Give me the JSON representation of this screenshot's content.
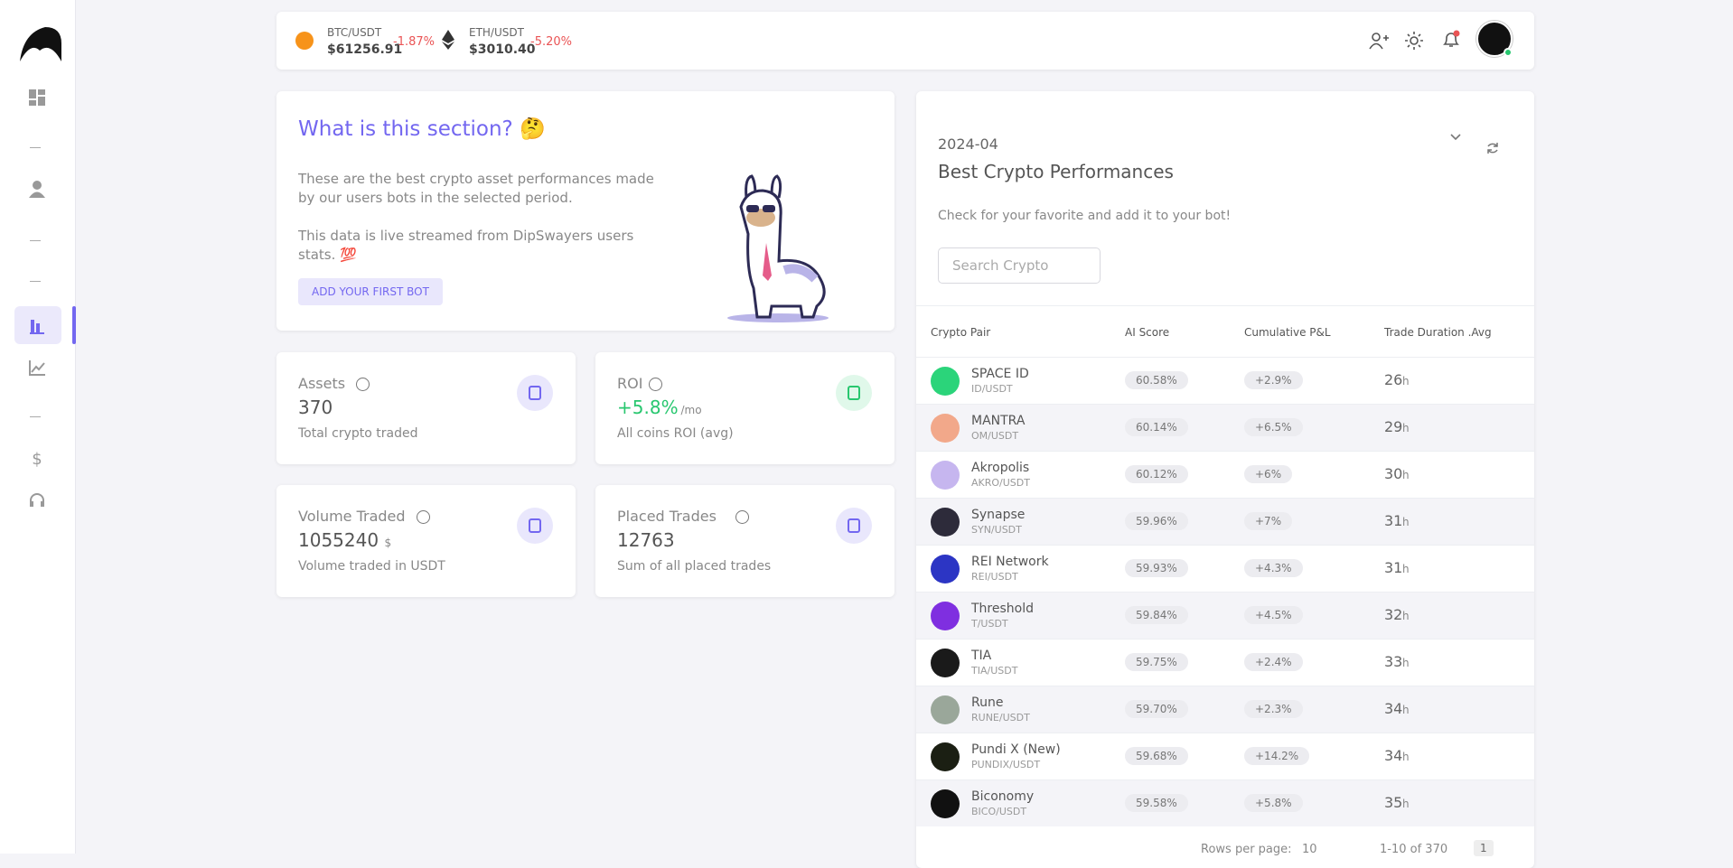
{
  "topbar": {
    "tickers": [
      {
        "pair": "BTC/USDT",
        "price": "$61256.91",
        "change": "-1.87%"
      },
      {
        "pair": "ETH/USDT",
        "price": "$3010.40",
        "change": "-5.20%"
      }
    ]
  },
  "info": {
    "title": "What is this section? 🤔",
    "paragraph1": "These are the best crypto asset performances made by our users bots in the selected period.",
    "paragraph2": "This data is live streamed from DipSwayers users stats. 💯",
    "button": "ADD YOUR FIRST BOT"
  },
  "stats": [
    {
      "label": "Assets",
      "value": "370",
      "unit": "",
      "caption": "Total crypto traded"
    },
    {
      "label": "ROI",
      "value": "+5.8%",
      "unit": "/mo",
      "caption": "All coins ROI (avg)"
    },
    {
      "label": "Volume Traded",
      "value": "1055240",
      "unit": "$",
      "caption": "Volume traded in USDT"
    },
    {
      "label": "Placed Trades",
      "value": "12763",
      "unit": "",
      "caption": "Sum of all placed trades"
    }
  ],
  "panel": {
    "period": "2024-04",
    "title": "Best Crypto Performances",
    "subtitle": "Check for your favorite and add it to your bot!",
    "search_placeholder": "Search Crypto"
  },
  "table": {
    "headers": [
      "Crypto Pair",
      "AI Score",
      "Cumulative P&L",
      "Trade Duration .Avg"
    ],
    "duration_unit": "h",
    "rows": [
      [
        "SPACE ID",
        "ID/USDT",
        "60.58%",
        "+2.9%",
        "26"
      ],
      [
        "MANTRA",
        "OM/USDT",
        "60.14%",
        "+6.5%",
        "29"
      ],
      [
        "Akropolis",
        "AKRO/USDT",
        "60.12%",
        "+6%",
        "30"
      ],
      [
        "Synapse",
        "SYN/USDT",
        "59.96%",
        "+7%",
        "31"
      ],
      [
        "REI Network",
        "REI/USDT",
        "59.93%",
        "+4.3%",
        "31"
      ],
      [
        "Threshold",
        "T/USDT",
        "59.84%",
        "+4.5%",
        "32"
      ],
      [
        "TIA",
        "TIA/USDT",
        "59.75%",
        "+2.4%",
        "33"
      ],
      [
        "Rune",
        "RUNE/USDT",
        "59.70%",
        "+2.3%",
        "34"
      ],
      [
        "Pundi X (New)",
        "PUNDIX/USDT",
        "59.68%",
        "+14.2%",
        "34"
      ],
      [
        "Biconomy",
        "BICO/USDT",
        "59.58%",
        "+5.8%",
        "35"
      ]
    ]
  },
  "footer": {
    "rows_per_page_label": "Rows per page:",
    "rows_per_page": "10",
    "range": "1-10 of 370",
    "page": "1"
  }
}
